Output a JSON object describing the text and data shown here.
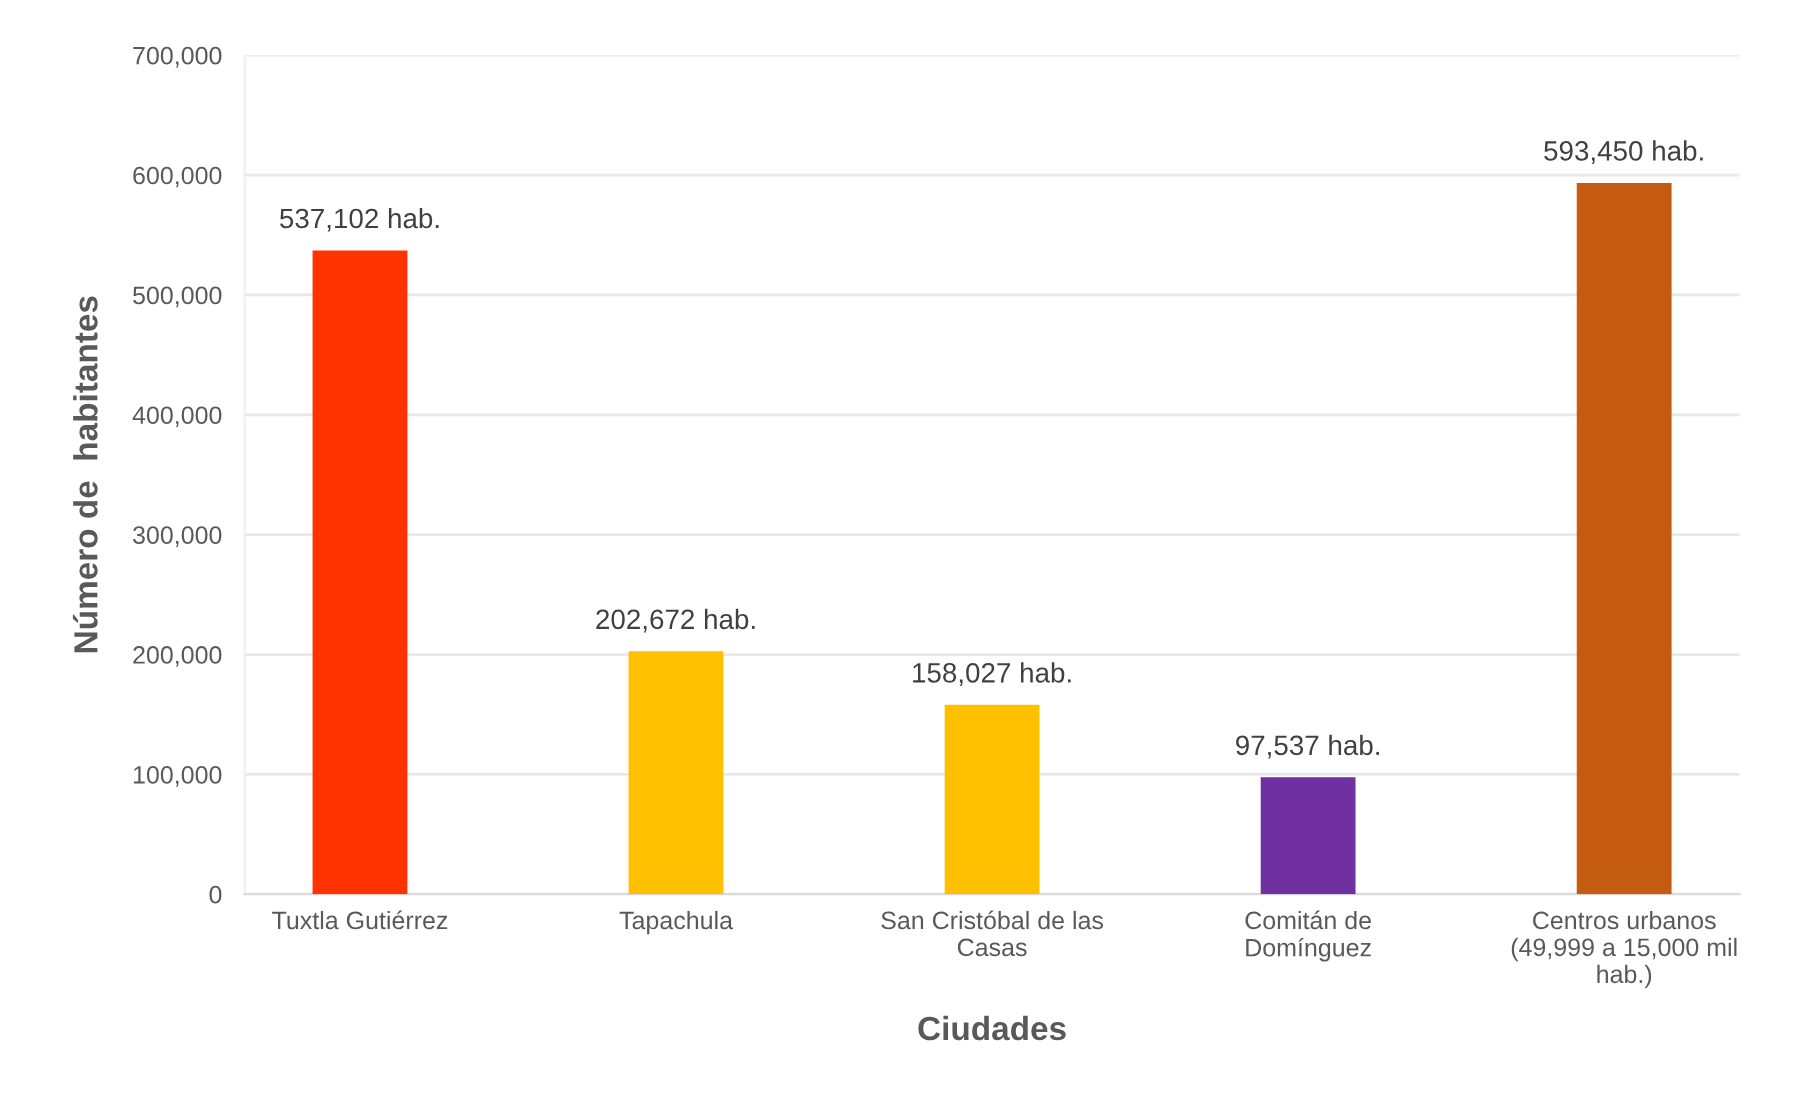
{
  "chart_data": {
    "type": "bar",
    "xlabel": "Ciudades",
    "ylabel": "Número de  habitantes",
    "categories": [
      "Tuxtla Gutiérrez",
      "Tapachula",
      "San Cristóbal de las\nCasas",
      "Comitán de\nDomínguez",
      "Centros urbanos\n(49,999 a 15,000 mil\nhab.)"
    ],
    "values": [
      537102,
      202672,
      158027,
      97537,
      593450
    ],
    "colors": [
      "#ff3300",
      "#ffc000",
      "#ffc000",
      "#7030a0",
      "#c55a11"
    ],
    "value_labels": [
      "537,102 hab.",
      "202,672 hab.",
      "158,027 hab.",
      "97,537 hab.",
      "593,450 hab."
    ],
    "ylim": [
      0,
      700000
    ],
    "yticks": [
      {
        "value": 0,
        "label": "0"
      },
      {
        "value": 100000,
        "label": "100,000"
      },
      {
        "value": 200000,
        "label": "200,000"
      },
      {
        "value": 300000,
        "label": "300,000"
      },
      {
        "value": 400000,
        "label": "400,000"
      },
      {
        "value": 500000,
        "label": "500,000"
      },
      {
        "value": 600000,
        "label": "600,000"
      },
      {
        "value": 700000,
        "label": "700,000"
      }
    ],
    "grid": "y"
  }
}
